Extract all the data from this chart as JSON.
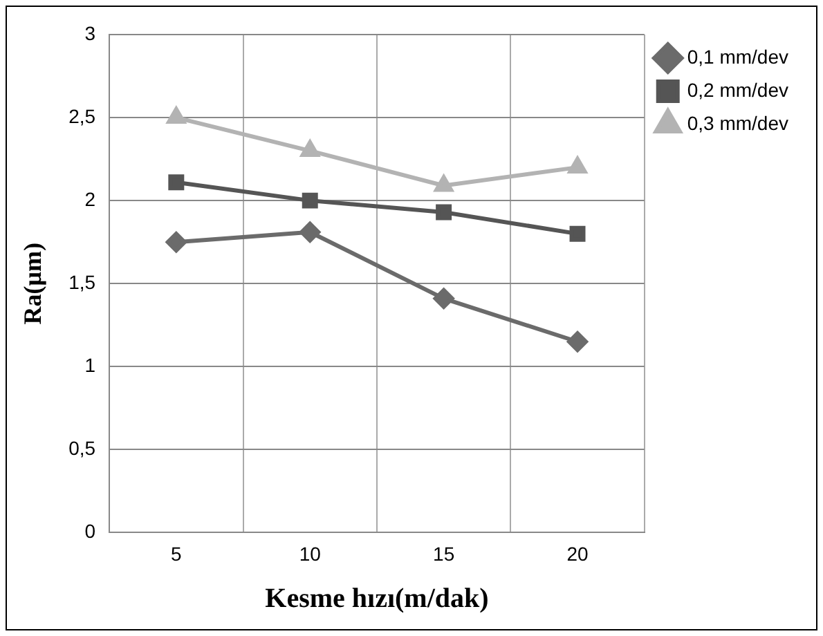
{
  "chart_data": {
    "type": "line",
    "xlabel": "Kesme hızı(m/dak)",
    "ylabel": "Ra(μm)",
    "categories": [
      "5",
      "10",
      "15",
      "20"
    ],
    "series": [
      {
        "name": "0,1 mm/dev",
        "color": "#6b6b6b",
        "marker": "diamond",
        "values": [
          1.75,
          1.81,
          1.41,
          1.15
        ]
      },
      {
        "name": "0,2 mm/dev",
        "color": "#555555",
        "marker": "square",
        "values": [
          2.11,
          2.0,
          1.93,
          1.8
        ]
      },
      {
        "name": "0,3 mm/dev",
        "color": "#b3b3b3",
        "marker": "triangle",
        "values": [
          2.5,
          2.3,
          2.09,
          2.2
        ]
      }
    ],
    "ylim": [
      0,
      3
    ],
    "yticks": [
      0,
      {
        "value": 0.5,
        "label": "0,5"
      },
      1,
      {
        "value": 1.5,
        "label": "1,5"
      },
      2,
      {
        "value": 2.5,
        "label": "2,5"
      },
      3
    ],
    "grid": true,
    "legend": "right",
    "line_style": "solid"
  }
}
